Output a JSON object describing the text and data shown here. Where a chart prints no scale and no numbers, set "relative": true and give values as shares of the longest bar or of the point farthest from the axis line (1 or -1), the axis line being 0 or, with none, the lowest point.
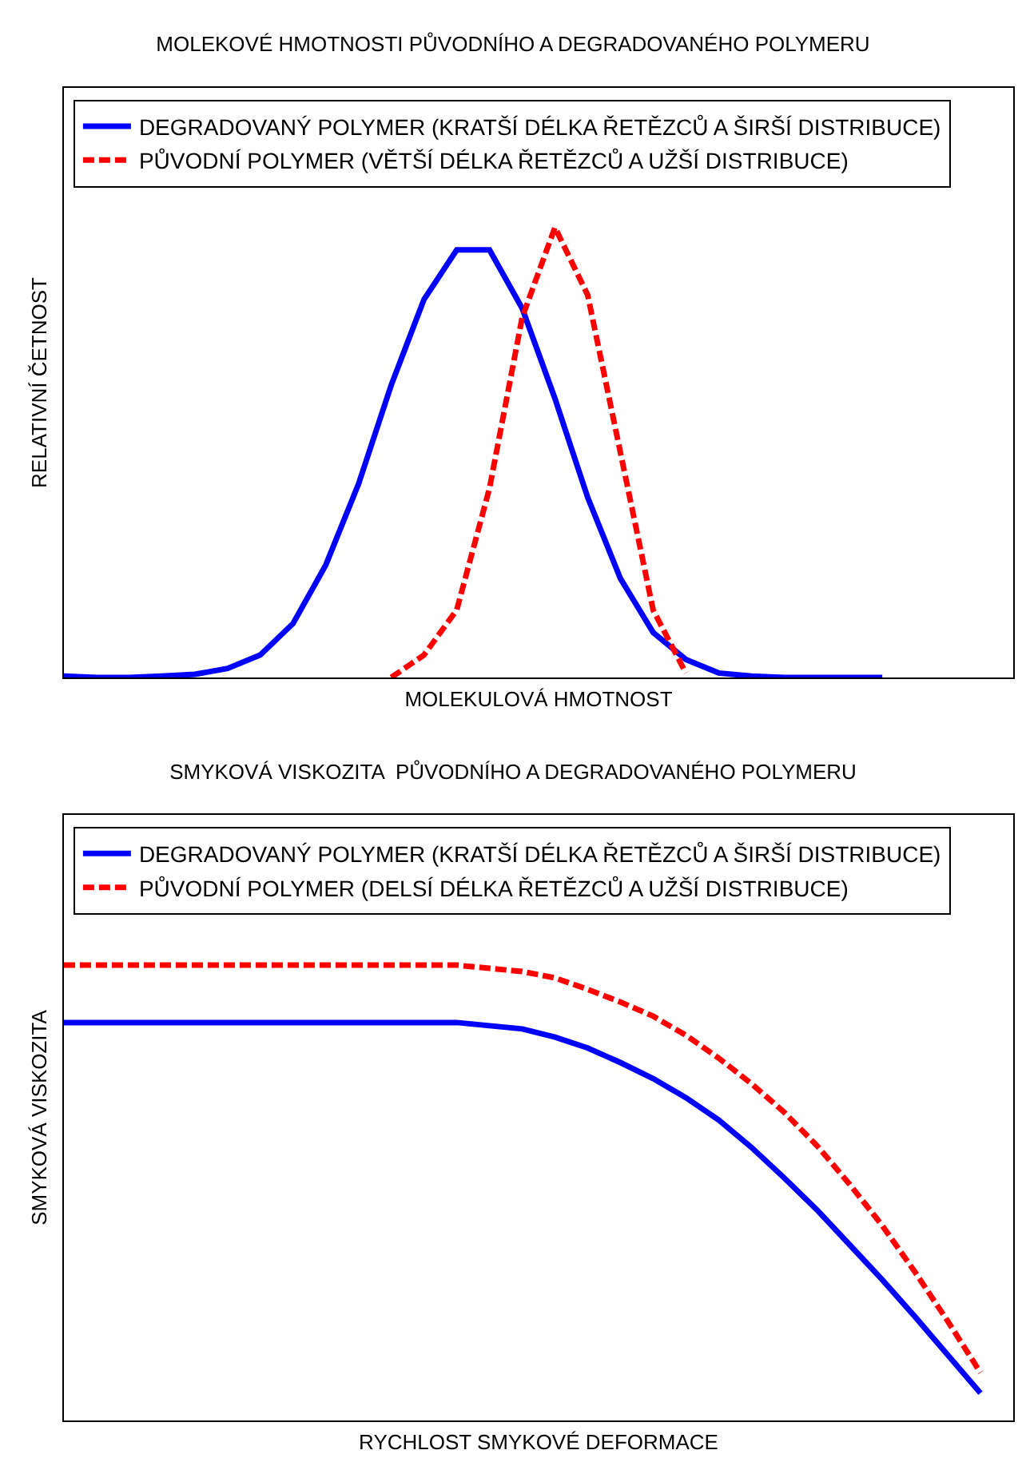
{
  "chart_data": [
    {
      "type": "line",
      "title": "MOLEKOVÉ HMOTNOSTI PŮVODNÍHO A DEGRADOVANÉHO POLYMERU",
      "xlabel": "MOLEKULOVÁ HMOTNOST",
      "ylabel": "RELATIVNÍ ČETNOST",
      "relative": true,
      "grid": false,
      "legend": "top",
      "marker": "none",
      "categories": [
        null,
        null,
        null,
        null,
        null,
        null,
        null,
        null,
        null,
        null,
        null,
        null,
        null,
        null,
        null,
        null,
        null,
        null,
        null,
        null,
        null,
        null,
        null,
        null,
        null,
        null,
        null,
        null,
        null,
        null
      ],
      "series": [
        {
          "name": "DEGRADOVANÝ POLYMER (KRATŠÍ DÉLKA ŘETĚZCŮ A ŠIRŠÍ DISTRIBUCE)",
          "color": "#0000ff",
          "line_style": "solid",
          "values": [
            0.003,
            0,
            0,
            0.003,
            0.007,
            0.02,
            0.05,
            0.12,
            0.25,
            0.43,
            0.65,
            0.84,
            0.95,
            0.95,
            0.82,
            0.62,
            0.4,
            0.22,
            0.1,
            0.04,
            0.01,
            0.003,
            0,
            0,
            0,
            0,
            null,
            null,
            null,
            null
          ]
        },
        {
          "name": "PŮVODNÍ POLYMER (VĚTŠÍ DÉLKA ŘETĚZCŮ A UŽŠÍ DISTRIBUCE)",
          "color": "#ff0000",
          "line_style": "dashed",
          "values": [
            null,
            null,
            null,
            null,
            null,
            null,
            null,
            null,
            null,
            null,
            0,
            0.05,
            0.15,
            0.42,
            0.8,
            1,
            0.85,
            0.5,
            0.15,
            0.01,
            null,
            null,
            null,
            null,
            null,
            null,
            null,
            null,
            null,
            null
          ]
        }
      ]
    },
    {
      "type": "line",
      "title": "SMYKOVÁ VISKOZITA  PŮVODNÍHO A DEGRADOVANÉHO POLYMERU",
      "xlabel": "RYCHLOST SMYKOVÉ DEFORMACE",
      "ylabel": "SMYKOVÁ VISKOZITA",
      "relative": true,
      "grid": false,
      "legend": "top",
      "marker": "none",
      "categories": [
        null,
        null,
        null,
        null,
        null,
        null,
        null,
        null,
        null,
        null,
        null,
        null,
        null,
        null,
        null,
        null,
        null,
        null,
        null,
        null,
        null,
        null,
        null,
        null,
        null,
        null,
        null,
        null,
        null,
        null
      ],
      "series": [
        {
          "name": "DEGRADOVANÝ POLYMER (KRATŠÍ DÉLKA ŘETĚZCŮ A ŠIRŠÍ DISTRIBUCE)",
          "color": "#0000ff",
          "line_style": "solid",
          "values": [
            0.874,
            0.874,
            0.874,
            0.874,
            0.874,
            0.874,
            0.874,
            0.874,
            0.874,
            0.874,
            0.874,
            0.874,
            0.874,
            0.867,
            0.86,
            0.842,
            0.818,
            0.786,
            0.751,
            0.709,
            0.66,
            0.6,
            0.533,
            0.463,
            0.386,
            0.309,
            0.228,
            0.144,
            0.06,
            null
          ]
        },
        {
          "name": "PŮVODNÍ POLYMER (DELSÍ DÉLKA ŘETĚZCŮ A UŽŠÍ DISTRIBUCE)",
          "color": "#ff0000",
          "line_style": "dashed",
          "values": [
            1,
            1,
            1,
            1,
            1,
            1,
            1,
            1,
            1,
            1,
            1,
            1,
            1,
            0.993,
            0.986,
            0.972,
            0.947,
            0.919,
            0.888,
            0.846,
            0.796,
            0.74,
            0.677,
            0.604,
            0.519,
            0.428,
            0.326,
            0.218,
            0.105,
            null
          ]
        }
      ]
    }
  ]
}
